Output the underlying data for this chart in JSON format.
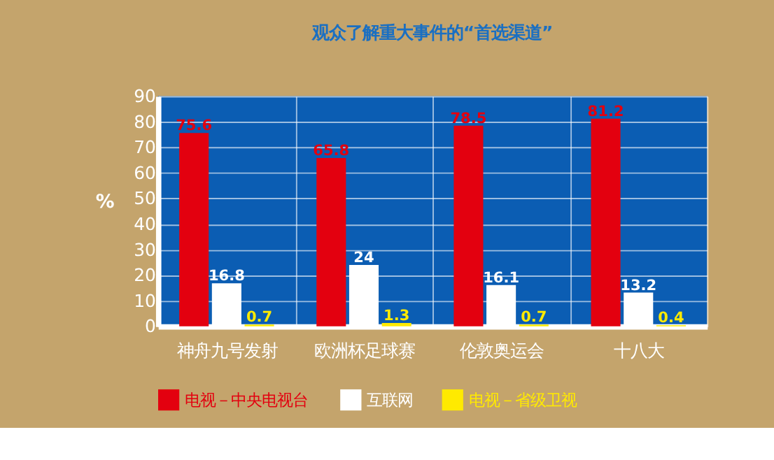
{
  "chart_data": {
    "type": "bar",
    "title": "观众了解重大事件的“首选渠道”",
    "ylabel": "%",
    "categories": [
      "神舟九号发射",
      "欧洲杯足球赛",
      "伦敦奥运会",
      "十八大"
    ],
    "series": [
      {
        "name": "电视－中央电视台",
        "color": "#e3000f",
        "values": [
          75.6,
          65.8,
          78.5,
          81.2
        ]
      },
      {
        "name": "互联网",
        "color": "#ffffff",
        "values": [
          16.8,
          24,
          16.1,
          13.2
        ]
      },
      {
        "name": "电视－省级卫视",
        "color": "#ffea00",
        "values": [
          0.7,
          1.3,
          0.7,
          0.4
        ]
      }
    ],
    "ylim": [
      0,
      90
    ],
    "yticks": [
      0,
      10,
      20,
      30,
      40,
      50,
      60,
      70,
      80,
      90
    ],
    "grid": true,
    "legend": "bottom",
    "data_labels": true
  }
}
